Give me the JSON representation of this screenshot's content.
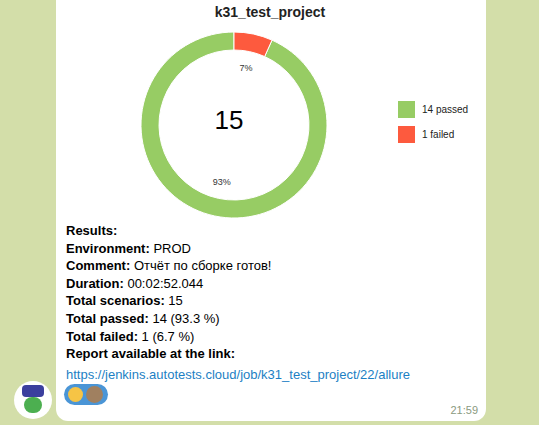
{
  "chart_data": {
    "type": "donut",
    "title": "k31_test_project",
    "annotation": "15",
    "categories": [
      "14 passed",
      "1 failed"
    ],
    "values": [
      93.3,
      6.7
    ],
    "value_labels": [
      "93%",
      "7%"
    ],
    "colors": [
      "#97cc64",
      "#fd5a3e"
    ],
    "data_labels": true,
    "legend": "right"
  },
  "message": {
    "heading": "Results:",
    "lines": [
      {
        "label": "Environment:",
        "value": "PROD"
      },
      {
        "label": "Comment:",
        "value": "Отчёт по сборке готов!"
      },
      {
        "label": "Duration:",
        "value": "00:02:52.044"
      },
      {
        "label": "Total scenarios:",
        "value": "15"
      },
      {
        "label": "Total passed:",
        "value": "14 (93.3 %)"
      },
      {
        "label": "Total failed:",
        "value": "1 (6.7 %)"
      }
    ],
    "link_caption": "Report available at the link:",
    "link": "https://jenkins.autotests.cloud/job/k31_test_project/22/allure",
    "time": "21:59"
  }
}
